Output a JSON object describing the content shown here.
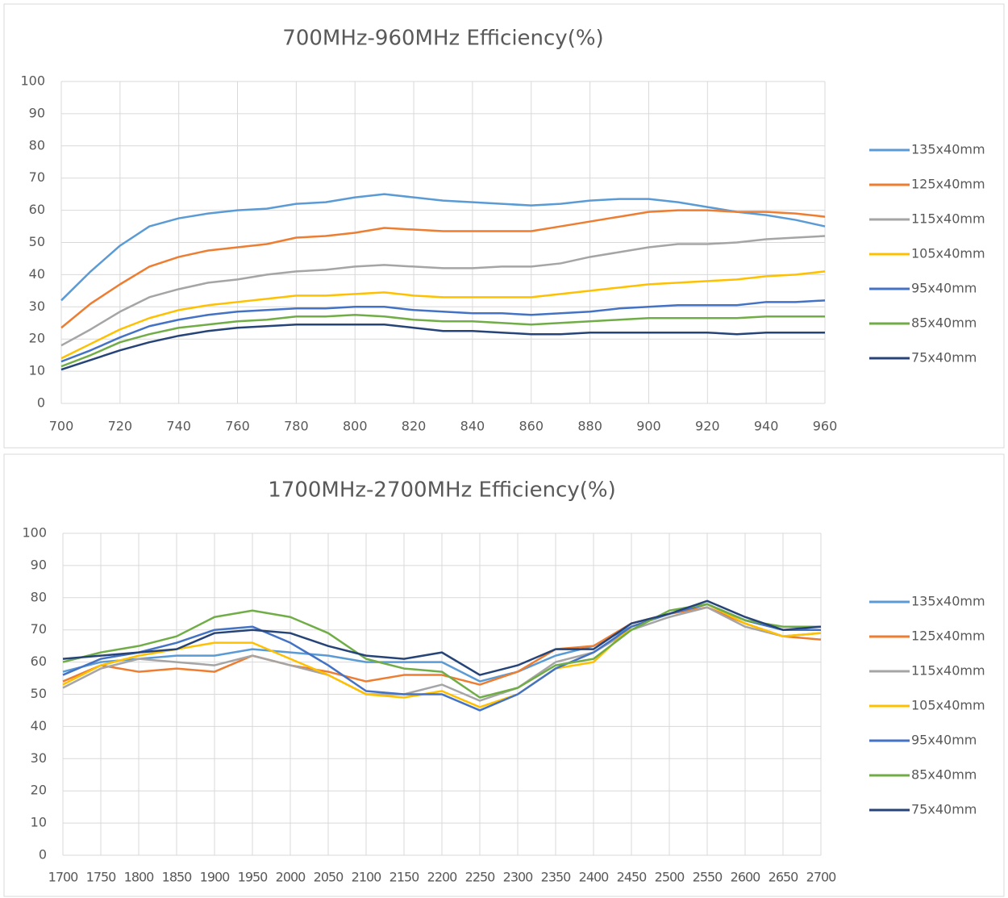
{
  "chart_data": [
    {
      "type": "line",
      "title": "700MHz-960MHz  Efficiency(%)",
      "x": [
        700,
        710,
        720,
        730,
        740,
        750,
        760,
        770,
        780,
        790,
        800,
        810,
        820,
        830,
        840,
        850,
        860,
        870,
        880,
        890,
        900,
        910,
        920,
        930,
        940,
        950,
        960
      ],
      "xlim": [
        700,
        960
      ],
      "xticks": [
        700,
        720,
        740,
        760,
        780,
        800,
        820,
        840,
        860,
        880,
        900,
        920,
        940,
        960
      ],
      "ylim": [
        0,
        100
      ],
      "yticks": [
        0,
        10,
        20,
        30,
        40,
        50,
        60,
        70,
        80,
        90,
        100
      ],
      "grid": true,
      "legend": "right",
      "series": [
        {
          "name": "135x40mm",
          "color": "#5b9bd5",
          "values": [
            32,
            41,
            49,
            55,
            57.5,
            59,
            60,
            60.5,
            62,
            62.5,
            64,
            65,
            64,
            63,
            62.5,
            62,
            61.5,
            62,
            63,
            63.5,
            63.5,
            62.5,
            61,
            59.5,
            58.5,
            57,
            55
          ]
        },
        {
          "name": "125x40mm",
          "color": "#ed7d31",
          "values": [
            23.5,
            31,
            37,
            42.5,
            45.5,
            47.5,
            48.5,
            49.5,
            51.5,
            52,
            53,
            54.5,
            54,
            53.5,
            53.5,
            53.5,
            53.5,
            55,
            56.5,
            58,
            59.5,
            60,
            60,
            59.5,
            59.5,
            59,
            58
          ]
        },
        {
          "name": "115x40mm",
          "color": "#a5a5a5",
          "values": [
            18,
            23,
            28.5,
            33,
            35.5,
            37.5,
            38.5,
            40,
            41,
            41.5,
            42.5,
            43,
            42.5,
            42,
            42,
            42.5,
            42.5,
            43.5,
            45.5,
            47,
            48.5,
            49.5,
            49.5,
            50,
            51,
            51.5,
            52
          ]
        },
        {
          "name": "105x40mm",
          "color": "#ffc000",
          "values": [
            14,
            18.5,
            23,
            26.5,
            29,
            30.5,
            31.5,
            32.5,
            33.5,
            33.5,
            34,
            34.5,
            33.5,
            33,
            33,
            33,
            33,
            34,
            35,
            36,
            37,
            37.5,
            38,
            38.5,
            39.5,
            40,
            41
          ]
        },
        {
          "name": "95x40mm",
          "color": "#4472c4",
          "values": [
            13,
            16.5,
            20.5,
            24,
            26,
            27.5,
            28.5,
            29,
            29.5,
            29.5,
            30,
            30,
            29,
            28.5,
            28,
            28,
            27.5,
            28,
            28.5,
            29.5,
            30,
            30.5,
            30.5,
            30.5,
            31.5,
            31.5,
            32
          ]
        },
        {
          "name": "85x40mm",
          "color": "#70ad47",
          "values": [
            11.5,
            15,
            19,
            21.5,
            23.5,
            24.5,
            25.5,
            26,
            27,
            27,
            27.5,
            27,
            26,
            25.5,
            25.5,
            25,
            24.5,
            25,
            25.5,
            26,
            26.5,
            26.5,
            26.5,
            26.5,
            27,
            27,
            27
          ]
        },
        {
          "name": "75x40mm",
          "color": "#264478",
          "values": [
            10.5,
            13.5,
            16.5,
            19,
            21,
            22.5,
            23.5,
            24,
            24.5,
            24.5,
            24.5,
            24.5,
            23.5,
            22.5,
            22.5,
            22,
            21.5,
            21.5,
            22,
            22,
            22,
            22,
            22,
            21.5,
            22,
            22,
            22
          ]
        }
      ]
    },
    {
      "type": "line",
      "title": "1700MHz-2700MHz  Efficiency(%)",
      "x": [
        1700,
        1750,
        1800,
        1850,
        1900,
        1950,
        2000,
        2050,
        2100,
        2150,
        2200,
        2250,
        2300,
        2350,
        2400,
        2450,
        2500,
        2550,
        2600,
        2650,
        2700
      ],
      "xlim": [
        1700,
        2700
      ],
      "xticks": [
        1700,
        1750,
        1800,
        1850,
        1900,
        1950,
        2000,
        2050,
        2100,
        2150,
        2200,
        2250,
        2300,
        2350,
        2400,
        2450,
        2500,
        2550,
        2600,
        2650,
        2700
      ],
      "ylim": [
        0,
        100
      ],
      "yticks": [
        0,
        10,
        20,
        30,
        40,
        50,
        60,
        70,
        80,
        90,
        100
      ],
      "grid": true,
      "legend": "right",
      "series": [
        {
          "name": "135x40mm",
          "color": "#5b9bd5",
          "values": [
            57,
            60,
            61,
            62,
            62,
            64,
            63,
            62,
            60,
            60,
            60,
            54,
            57,
            62,
            65,
            71,
            75,
            78,
            73,
            70,
            70
          ]
        },
        {
          "name": "125x40mm",
          "color": "#ed7d31",
          "values": [
            54,
            59,
            57,
            58,
            57,
            62,
            59,
            57,
            54,
            56,
            56,
            53,
            57,
            64,
            65,
            72,
            75,
            77,
            72,
            68,
            67
          ]
        },
        {
          "name": "115x40mm",
          "color": "#a5a5a5",
          "values": [
            52,
            58,
            61,
            60,
            59,
            62,
            59,
            56,
            50,
            50,
            53,
            48,
            52,
            60,
            63,
            70,
            74,
            77,
            71,
            68,
            69
          ]
        },
        {
          "name": "105x40mm",
          "color": "#ffc000",
          "values": [
            53,
            59,
            62,
            64,
            66,
            66,
            61,
            56,
            50,
            49,
            51,
            46,
            50,
            58,
            60,
            71,
            75,
            78,
            72,
            68,
            69
          ]
        },
        {
          "name": "95x40mm",
          "color": "#4472c4",
          "values": [
            56,
            61,
            63,
            66,
            70,
            71,
            66,
            59,
            51,
            50,
            50,
            45,
            50,
            58,
            63,
            71,
            75,
            78,
            73,
            70,
            70
          ]
        },
        {
          "name": "85x40mm",
          "color": "#70ad47",
          "values": [
            60,
            63,
            65,
            68,
            74,
            76,
            74,
            69,
            61,
            58,
            57,
            49,
            52,
            59,
            61,
            70,
            76,
            78,
            73,
            71,
            71
          ]
        },
        {
          "name": "75x40mm",
          "color": "#264478",
          "values": [
            61,
            62,
            63,
            64,
            69,
            70,
            69,
            65,
            62,
            61,
            63,
            56,
            59,
            64,
            64,
            72,
            75,
            79,
            74,
            70,
            71
          ]
        }
      ]
    }
  ]
}
